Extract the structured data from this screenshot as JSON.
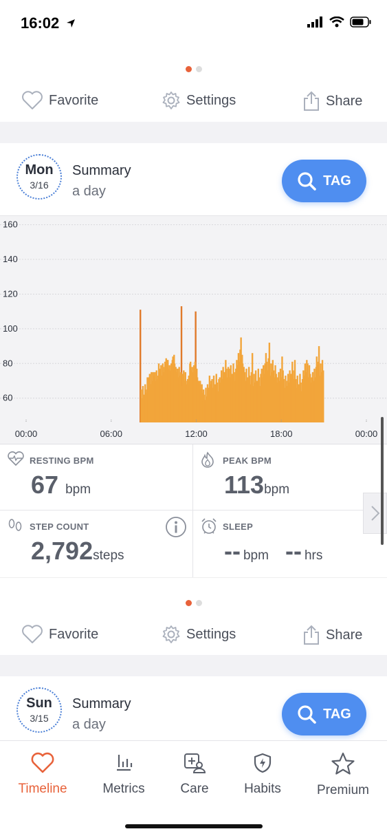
{
  "status": {
    "time": "16:02"
  },
  "card1": {
    "actions": {
      "favorite": "Favorite",
      "settings": "Settings",
      "share": "Share"
    },
    "day": "Mon",
    "date": "3/16",
    "title": "Summary",
    "subtitle": "a day",
    "tag_label": "TAG",
    "metrics": {
      "resting": {
        "label": "RESTING BPM",
        "value": "67",
        "unit": "bpm"
      },
      "peak": {
        "label": "PEAK BPM",
        "value": "113",
        "unit": "bpm"
      },
      "steps": {
        "label": "STEP COUNT",
        "value": "2,792",
        "unit": "steps"
      },
      "sleep": {
        "label": "SLEEP",
        "bpm_value": "--",
        "bpm_unit": "bpm",
        "hrs_value": "--",
        "hrs_unit": "hrs"
      }
    }
  },
  "card2": {
    "actions": {
      "favorite": "Favorite",
      "settings": "Settings",
      "share": "Share"
    },
    "day": "Sun",
    "date": "3/15",
    "title": "Summary",
    "subtitle": "a day",
    "tag_label": "TAG"
  },
  "tabs": [
    {
      "label": "Timeline",
      "icon": "heart-icon",
      "active": true
    },
    {
      "label": "Metrics",
      "icon": "bar-chart-icon",
      "active": false
    },
    {
      "label": "Care",
      "icon": "care-icon",
      "active": false
    },
    {
      "label": "Habits",
      "icon": "shield-icon",
      "active": false
    },
    {
      "label": "Premium",
      "icon": "star-icon",
      "active": false
    }
  ],
  "colors": {
    "accent": "#e8623a",
    "bar": "#f2a53a",
    "bar_peak": "#e07a2a",
    "tag": "#4f8ef0",
    "date_ring": "#4a7fd6"
  },
  "chart_data": {
    "type": "bar",
    "ylim": [
      46,
      165
    ],
    "yticks": [
      "60",
      "80",
      "100",
      "120",
      "140",
      "160"
    ],
    "xticks": [
      "00:00",
      "06:00",
      "12:00",
      "18:00",
      "00:00"
    ],
    "xrange_hours": [
      0,
      24
    ],
    "series": [
      {
        "values": [
          [
            8.0,
            111
          ],
          [
            8.3,
            62
          ],
          [
            8.5,
            72
          ],
          [
            8.7,
            68
          ],
          [
            8.9,
            75
          ],
          [
            9.1,
            70
          ],
          [
            9.3,
            80
          ],
          [
            9.5,
            73
          ],
          [
            9.7,
            78
          ],
          [
            9.9,
            82
          ],
          [
            10.1,
            76
          ],
          [
            10.3,
            84
          ],
          [
            10.5,
            78
          ],
          [
            10.7,
            72
          ],
          [
            10.9,
            113
          ],
          [
            11.1,
            70
          ],
          [
            11.3,
            68
          ],
          [
            11.5,
            80
          ],
          [
            11.7,
            75
          ],
          [
            11.9,
            110
          ],
          [
            12.1,
            70
          ],
          [
            12.3,
            65
          ],
          [
            12.5,
            62
          ],
          [
            12.8,
            66
          ],
          [
            13.0,
            70
          ],
          [
            13.3,
            68
          ],
          [
            13.6,
            72
          ],
          [
            13.9,
            75
          ],
          [
            14.2,
            78
          ],
          [
            14.5,
            74
          ],
          [
            14.8,
            82
          ],
          [
            15.1,
            95
          ],
          [
            15.3,
            78
          ],
          [
            15.6,
            72
          ],
          [
            15.9,
            86
          ],
          [
            16.2,
            70
          ],
          [
            16.5,
            74
          ],
          [
            16.8,
            80
          ],
          [
            17.1,
            92
          ],
          [
            17.4,
            76
          ],
          [
            17.7,
            72
          ],
          [
            18.0,
            84
          ],
          [
            18.3,
            70
          ],
          [
            18.6,
            74
          ],
          [
            18.9,
            82
          ],
          [
            19.2,
            68
          ],
          [
            19.5,
            76
          ],
          [
            19.8,
            80
          ],
          [
            20.1,
            72
          ],
          [
            20.4,
            78
          ],
          [
            20.6,
            90
          ],
          [
            20.9,
            76
          ]
        ]
      }
    ]
  }
}
